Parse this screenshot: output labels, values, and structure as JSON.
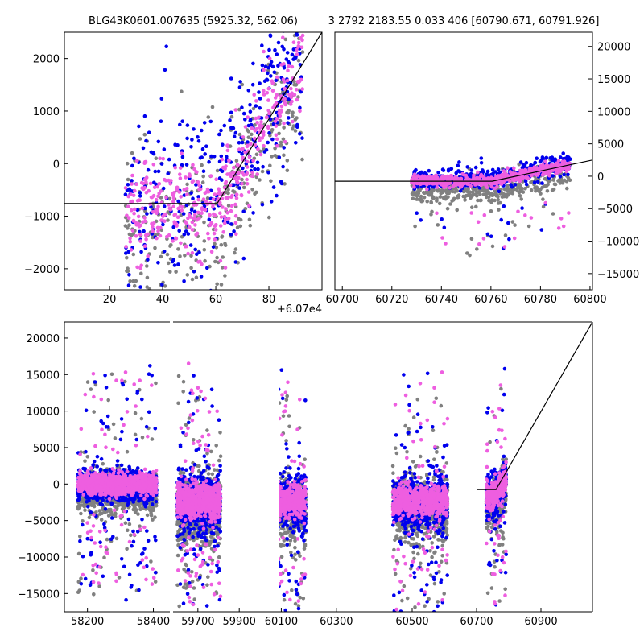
{
  "chart_data": [
    {
      "type": "scatter",
      "panel": "top-left",
      "title": "BLG43K0601.007635 (5925.32, 562.06)",
      "x_offset_label": "+6.07e4",
      "xlim": [
        3,
        100
      ],
      "ylim": [
        -2400,
        2500
      ],
      "xticks": [
        20,
        40,
        60,
        80
      ],
      "yticks": [
        2000,
        1000,
        0,
        -1000,
        -2000
      ],
      "xtick_labels": [
        "20",
        "40",
        "60",
        "80"
      ],
      "ytick_labels": [
        "2000",
        "1000",
        "0",
        "−1000",
        "−2000"
      ],
      "series": [
        {
          "name": "gray",
          "color": "#808080"
        },
        {
          "name": "blue",
          "color": "#0000ee"
        },
        {
          "name": "pink",
          "color": "#ee5ee0"
        }
      ],
      "model": {
        "x": [
          3,
          60.5,
          100
        ],
        "y": [
          -760,
          -760,
          2500
        ]
      }
    },
    {
      "type": "scatter",
      "panel": "top-right",
      "title": "3 2792 2183.55 0.033 406 [60790.671, 60791.926]",
      "xlim": [
        60697,
        60801
      ],
      "ylim": [
        -17500,
        22200
      ],
      "xticks": [
        60700,
        60720,
        60740,
        60760,
        60780,
        60800
      ],
      "yticks": [
        20000,
        15000,
        10000,
        5000,
        0,
        -5000,
        -10000,
        -15000
      ],
      "xtick_labels": [
        "60700",
        "60720",
        "60740",
        "60760",
        "60780",
        "60800"
      ],
      "ytick_labels": [
        "20000",
        "15000",
        "10000",
        "5000",
        "0",
        "−5000",
        "−10000",
        "−15000"
      ],
      "model": {
        "x": [
          60697,
          60760.5,
          60801
        ],
        "y": [
          -760,
          -760,
          2500
        ]
      }
    },
    {
      "type": "scatter",
      "panel": "bottom",
      "ylim": [
        -17500,
        22200
      ],
      "yticks": [
        20000,
        15000,
        10000,
        5000,
        0,
        -5000,
        -10000,
        -15000
      ],
      "ytick_labels": [
        "20000",
        "15000",
        "10000",
        "5000",
        "0",
        "−5000",
        "−10000",
        "−15000"
      ],
      "segments": [
        {
          "xlim": [
            58130,
            58450
          ],
          "xticks": [
            58200,
            58400
          ],
          "xtick_labels": [
            "58200",
            "58400"
          ]
        },
        {
          "xlim": [
            59580,
            60090
          ],
          "xticks": [
            59700,
            59900
          ],
          "xtick_labels": [
            "59700",
            "59900"
          ]
        },
        {
          "xlim": [
            60090,
            60470
          ],
          "xticks": [
            60100,
            60300
          ],
          "xtick_labels": [
            "60100",
            "60300"
          ]
        },
        {
          "xlim": [
            60410,
            61060
          ],
          "xticks": [
            60500,
            60700,
            60900
          ],
          "xtick_labels": [
            "60500",
            "60700",
            "60900"
          ]
        }
      ],
      "seasons": [
        {
          "segment": 0,
          "x": [
            58170,
            58410
          ],
          "level": 0,
          "spread": 700
        },
        {
          "segment": 1,
          "x": [
            59600,
            59810
          ],
          "level": -2300,
          "spread": 1100
        },
        {
          "segment": 2,
          "x": [
            60000,
            60190
          ],
          "level": -2300,
          "spread": 1100
        },
        {
          "segment": 3,
          "x": [
            60440,
            60610
          ],
          "level": -2300,
          "spread": 1100
        },
        {
          "segment": 3,
          "x": [
            60730,
            60792
          ],
          "level": -1300,
          "spread": 900
        }
      ],
      "model": {
        "segment": 3,
        "x": [
          60700,
          60760.5,
          61060
        ],
        "y": [
          -760,
          -760,
          22200
        ]
      }
    }
  ]
}
